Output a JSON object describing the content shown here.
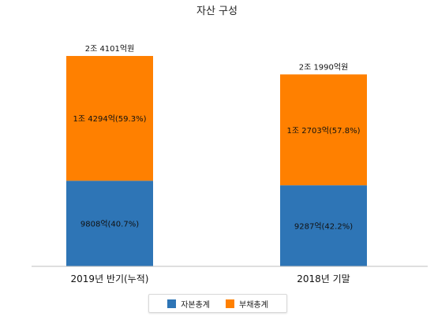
{
  "chart_data": {
    "type": "bar",
    "stacked": true,
    "title": "자산 구성",
    "categories": [
      "2019년 반기(누적)",
      "2018년 기말"
    ],
    "series": [
      {
        "name": "자본총계",
        "color": "#2e75b6",
        "values": [
          9808,
          9287
        ],
        "labels": [
          "9808억(40.7%)",
          "9287억(42.2%)"
        ]
      },
      {
        "name": "부채총계",
        "color": "#ff8000",
        "values": [
          14294,
          12703
        ],
        "labels": [
          "1조 4294억(59.3%)",
          "1조 2703억(57.8%)"
        ]
      }
    ],
    "totals": [
      24101,
      21990
    ],
    "total_labels": [
      "2조 4101억원",
      "2조 1990억원"
    ],
    "ylim": [
      0,
      26000
    ],
    "grid": false,
    "legend": "bottom-center"
  }
}
